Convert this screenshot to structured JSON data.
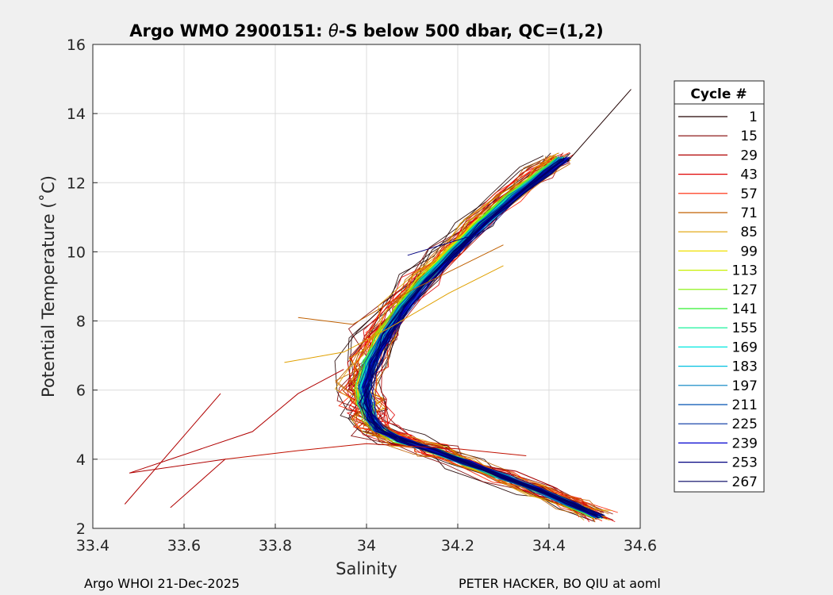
{
  "chart_data": {
    "type": "line",
    "title_prefix": "Argo WMO 2900151: ",
    "title_theta": "θ",
    "title_suffix": "-S below 500 dbar,  QC=(1,2)",
    "xlabel": "Salinity",
    "ylabel": "Potential Temperature (˚C)",
    "xlim": [
      33.4,
      34.6
    ],
    "ylim": [
      2,
      16
    ],
    "xticks": [
      33.4,
      33.6,
      33.8,
      34,
      34.2,
      34.4,
      34.6
    ],
    "xtick_labels": [
      "33.4",
      "33.6",
      "33.8",
      "34",
      "34.2",
      "34.4",
      "34.6"
    ],
    "yticks": [
      2,
      4,
      6,
      8,
      10,
      12,
      14,
      16
    ],
    "ytick_labels": [
      "2",
      "4",
      "6",
      "8",
      "10",
      "12",
      "14",
      "16"
    ],
    "grid": true,
    "legend": {
      "title": "Cycle #",
      "placement": "outside-right",
      "entries": [
        {
          "label": "1",
          "color": "#200000"
        },
        {
          "label": "15",
          "color": "#800000"
        },
        {
          "label": "29",
          "color": "#b00000"
        },
        {
          "label": "43",
          "color": "#e00000"
        },
        {
          "label": "57",
          "color": "#ff2000"
        },
        {
          "label": "71",
          "color": "#c06000"
        },
        {
          "label": "85",
          "color": "#e0a000"
        },
        {
          "label": "99",
          "color": "#f0e000"
        },
        {
          "label": "113",
          "color": "#c8f000"
        },
        {
          "label": "127",
          "color": "#80f000"
        },
        {
          "label": "141",
          "color": "#30f030"
        },
        {
          "label": "155",
          "color": "#00f090"
        },
        {
          "label": "169",
          "color": "#00e8e0"
        },
        {
          "label": "183",
          "color": "#00c0e0"
        },
        {
          "label": "197",
          "color": "#0080c0"
        },
        {
          "label": "211",
          "color": "#0050b0"
        },
        {
          "label": "225",
          "color": "#0030a0"
        },
        {
          "label": "239",
          "color": "#0000d0"
        },
        {
          "label": "253",
          "color": "#000080"
        },
        {
          "label": "267",
          "color": "#000060"
        }
      ]
    },
    "main_curve": [
      [
        34.51,
        2.35
      ],
      [
        34.45,
        2.7
      ],
      [
        34.38,
        3.1
      ],
      [
        34.3,
        3.5
      ],
      [
        34.22,
        3.9
      ],
      [
        34.15,
        4.25
      ],
      [
        34.08,
        4.55
      ],
      [
        34.03,
        4.85
      ],
      [
        34.01,
        5.2
      ],
      [
        34.0,
        5.6
      ],
      [
        34.005,
        6.1
      ],
      [
        34.02,
        6.8
      ],
      [
        34.05,
        7.6
      ],
      [
        34.09,
        8.4
      ],
      [
        34.14,
        9.2
      ],
      [
        34.2,
        10.0
      ],
      [
        34.26,
        10.8
      ],
      [
        34.33,
        11.6
      ],
      [
        34.4,
        12.3
      ],
      [
        34.44,
        12.7
      ]
    ],
    "outlier_profiles": [
      {
        "color": "#b00000",
        "points": [
          [
            33.68,
            5.9
          ],
          [
            33.47,
            2.7
          ]
        ]
      },
      {
        "color": "#b00000",
        "points": [
          [
            33.57,
            2.6
          ],
          [
            33.69,
            4.0
          ],
          [
            33.48,
            3.6
          ],
          [
            33.75,
            4.8
          ],
          [
            33.85,
            5.9
          ],
          [
            33.95,
            6.6
          ]
        ]
      },
      {
        "color": "#c01000",
        "points": [
          [
            33.69,
            4.0
          ],
          [
            33.85,
            4.25
          ],
          [
            34.0,
            4.45
          ],
          [
            34.2,
            4.3
          ],
          [
            34.35,
            4.1
          ]
        ]
      },
      {
        "color": "#e0a000",
        "points": [
          [
            33.82,
            6.8
          ],
          [
            33.95,
            7.1
          ],
          [
            34.05,
            7.8
          ],
          [
            34.18,
            8.8
          ],
          [
            34.3,
            9.6
          ]
        ]
      },
      {
        "color": "#c06000",
        "points": [
          [
            33.85,
            8.1
          ],
          [
            33.97,
            7.9
          ],
          [
            34.1,
            8.9
          ],
          [
            34.3,
            10.2
          ]
        ]
      },
      {
        "color": "#000080",
        "points": [
          [
            34.09,
            9.9
          ],
          [
            34.24,
            10.5
          ]
        ]
      },
      {
        "color": "#200000",
        "points": [
          [
            34.58,
            14.7
          ],
          [
            34.44,
            12.6
          ]
        ]
      }
    ]
  },
  "footer": {
    "left": "Argo WHOI 21-Dec-2025",
    "right": "PETER HACKER, BO QIU at aoml"
  },
  "colors": {
    "figure_bg": "#f0f0f0",
    "axes_bg": "#ffffff",
    "grid": "#dcdcdc",
    "axes_edge": "#262626"
  }
}
